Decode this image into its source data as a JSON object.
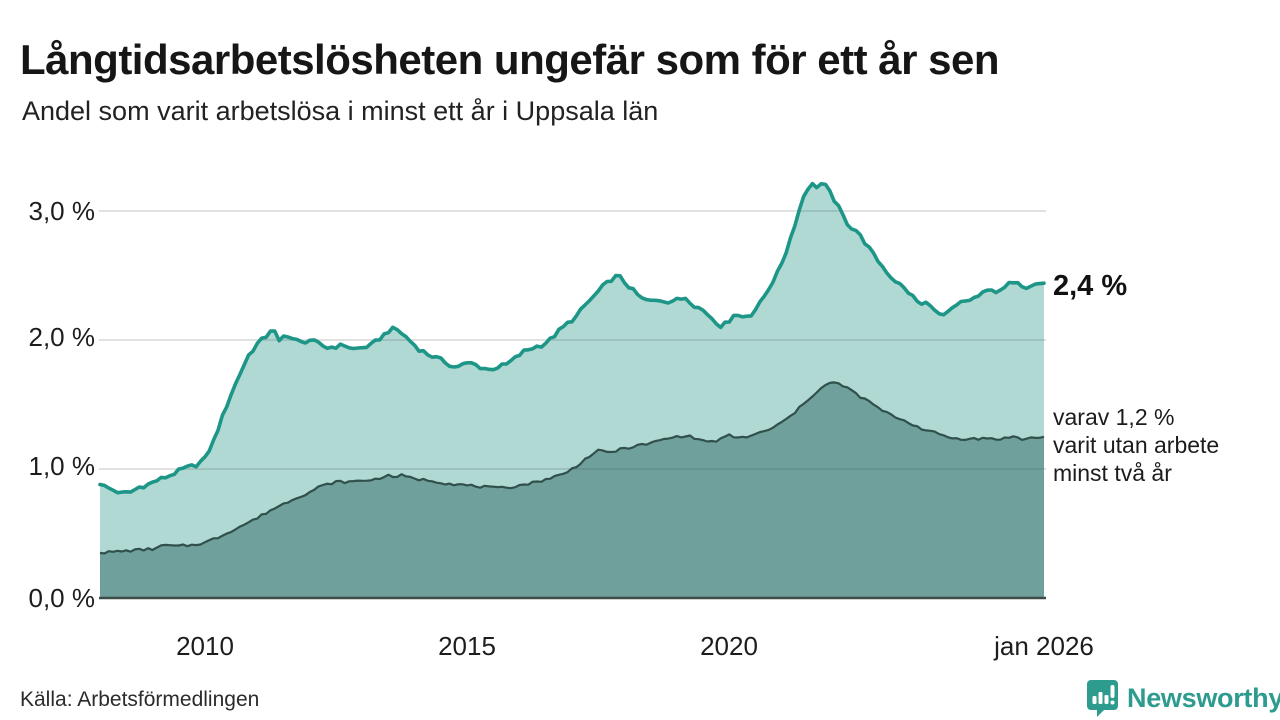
{
  "header": {
    "title": "Långtidsarbetslösheten ungefär som för ett år sen",
    "subtitle": "Andel som varit arbetslösa i minst ett år i Uppsala län"
  },
  "chart_data": {
    "type": "area",
    "title": "Andel som varit arbetslösa i minst ett år i Uppsala län",
    "x_domain": [
      2008.0,
      2026.0
    ],
    "x_resolution": "monthly",
    "ylim": [
      0,
      3.4
    ],
    "grid": "horizontal",
    "legend_position": "right-annotations",
    "yticks": [
      {
        "value": 0,
        "label": "0,0 %"
      },
      {
        "value": 1,
        "label": "1,0 %"
      },
      {
        "value": 2,
        "label": "2,0 %"
      },
      {
        "value": 3,
        "label": "3,0 %"
      }
    ],
    "xticks": [
      {
        "value": 2010,
        "label": "2010"
      },
      {
        "value": 2015,
        "label": "2015"
      },
      {
        "value": 2020,
        "label": "2020"
      },
      {
        "value": 2026,
        "label": "jan 2026"
      }
    ],
    "series": [
      {
        "name": "Andel arbetslösa minst ett år",
        "end_value": 2.4,
        "end_label": "2,4 %",
        "line_color": "#1d9688",
        "fill_color": "#b0d9d3",
        "points": [
          [
            2008.0,
            0.88
          ],
          [
            2008.17,
            0.85
          ],
          [
            2008.42,
            0.81
          ],
          [
            2008.58,
            0.82
          ],
          [
            2008.75,
            0.86
          ],
          [
            2008.92,
            0.88
          ],
          [
            2009.08,
            0.91
          ],
          [
            2009.33,
            0.95
          ],
          [
            2009.58,
            1.0
          ],
          [
            2009.83,
            1.03
          ],
          [
            2010.0,
            1.08
          ],
          [
            2010.17,
            1.22
          ],
          [
            2010.33,
            1.4
          ],
          [
            2010.5,
            1.58
          ],
          [
            2010.67,
            1.74
          ],
          [
            2010.83,
            1.88
          ],
          [
            2011.0,
            1.97
          ],
          [
            2011.17,
            2.03
          ],
          [
            2011.29,
            2.1
          ],
          [
            2011.42,
            1.98
          ],
          [
            2011.54,
            2.05
          ],
          [
            2011.67,
            2.01
          ],
          [
            2011.83,
            1.98
          ],
          [
            2012.0,
            2.0
          ],
          [
            2012.17,
            1.97
          ],
          [
            2012.33,
            1.94
          ],
          [
            2012.5,
            1.95
          ],
          [
            2012.67,
            1.96
          ],
          [
            2012.83,
            1.93
          ],
          [
            2013.0,
            1.94
          ],
          [
            2013.17,
            1.96
          ],
          [
            2013.33,
            2.01
          ],
          [
            2013.5,
            2.07
          ],
          [
            2013.63,
            2.09
          ],
          [
            2013.79,
            2.04
          ],
          [
            2013.92,
            1.99
          ],
          [
            2014.08,
            1.93
          ],
          [
            2014.25,
            1.89
          ],
          [
            2014.42,
            1.86
          ],
          [
            2014.58,
            1.83
          ],
          [
            2014.75,
            1.79
          ],
          [
            2014.92,
            1.81
          ],
          [
            2015.08,
            1.82
          ],
          [
            2015.25,
            1.79
          ],
          [
            2015.42,
            1.77
          ],
          [
            2015.58,
            1.79
          ],
          [
            2015.75,
            1.81
          ],
          [
            2015.92,
            1.86
          ],
          [
            2016.08,
            1.91
          ],
          [
            2016.25,
            1.94
          ],
          [
            2016.42,
            1.96
          ],
          [
            2016.58,
            2.0
          ],
          [
            2016.75,
            2.07
          ],
          [
            2016.92,
            2.13
          ],
          [
            2017.08,
            2.18
          ],
          [
            2017.25,
            2.27
          ],
          [
            2017.42,
            2.34
          ],
          [
            2017.58,
            2.41
          ],
          [
            2017.75,
            2.47
          ],
          [
            2017.88,
            2.5
          ],
          [
            2018.0,
            2.45
          ],
          [
            2018.17,
            2.38
          ],
          [
            2018.33,
            2.32
          ],
          [
            2018.5,
            2.3
          ],
          [
            2018.67,
            2.31
          ],
          [
            2018.83,
            2.3
          ],
          [
            2019.0,
            2.31
          ],
          [
            2019.17,
            2.33
          ],
          [
            2019.33,
            2.27
          ],
          [
            2019.5,
            2.23
          ],
          [
            2019.67,
            2.17
          ],
          [
            2019.83,
            2.11
          ],
          [
            2019.96,
            2.13
          ],
          [
            2020.08,
            2.2
          ],
          [
            2020.25,
            2.18
          ],
          [
            2020.42,
            2.2
          ],
          [
            2020.58,
            2.28
          ],
          [
            2020.75,
            2.4
          ],
          [
            2020.92,
            2.52
          ],
          [
            2021.08,
            2.68
          ],
          [
            2021.25,
            2.9
          ],
          [
            2021.42,
            3.12
          ],
          [
            2021.54,
            3.21
          ],
          [
            2021.67,
            3.19
          ],
          [
            2021.79,
            3.22
          ],
          [
            2021.92,
            3.14
          ],
          [
            2022.04,
            3.06
          ],
          [
            2022.17,
            2.96
          ],
          [
            2022.29,
            2.88
          ],
          [
            2022.42,
            2.85
          ],
          [
            2022.58,
            2.76
          ],
          [
            2022.75,
            2.66
          ],
          [
            2022.92,
            2.57
          ],
          [
            2023.08,
            2.49
          ],
          [
            2023.25,
            2.43
          ],
          [
            2023.42,
            2.37
          ],
          [
            2023.58,
            2.3
          ],
          [
            2023.71,
            2.26
          ],
          [
            2023.79,
            2.31
          ],
          [
            2023.92,
            2.22
          ],
          [
            2024.08,
            2.18
          ],
          [
            2024.25,
            2.24
          ],
          [
            2024.42,
            2.29
          ],
          [
            2024.58,
            2.31
          ],
          [
            2024.75,
            2.34
          ],
          [
            2024.92,
            2.38
          ],
          [
            2025.0,
            2.4
          ],
          [
            2025.13,
            2.36
          ],
          [
            2025.29,
            2.42
          ],
          [
            2025.46,
            2.47
          ],
          [
            2025.63,
            2.41
          ],
          [
            2025.79,
            2.43
          ],
          [
            2026.0,
            2.44
          ]
        ]
      },
      {
        "name": "varav utan arbete minst två år",
        "end_value": 1.2,
        "end_label": "varav 1,2 %\nvarit utan arbete\nminst två år",
        "line_color": "#31504c",
        "fill_color": "#6fa09b",
        "points": [
          [
            2008.0,
            0.35
          ],
          [
            2008.33,
            0.36
          ],
          [
            2008.67,
            0.37
          ],
          [
            2009.0,
            0.38
          ],
          [
            2009.25,
            0.41
          ],
          [
            2009.42,
            0.4
          ],
          [
            2009.75,
            0.41
          ],
          [
            2010.0,
            0.43
          ],
          [
            2010.25,
            0.47
          ],
          [
            2010.5,
            0.52
          ],
          [
            2010.75,
            0.57
          ],
          [
            2011.0,
            0.62
          ],
          [
            2011.25,
            0.68
          ],
          [
            2011.5,
            0.73
          ],
          [
            2011.75,
            0.78
          ],
          [
            2012.0,
            0.82
          ],
          [
            2012.17,
            0.86
          ],
          [
            2012.33,
            0.88
          ],
          [
            2012.5,
            0.9
          ],
          [
            2012.75,
            0.9
          ],
          [
            2013.0,
            0.91
          ],
          [
            2013.25,
            0.92
          ],
          [
            2013.46,
            0.95
          ],
          [
            2013.58,
            0.94
          ],
          [
            2013.75,
            0.95
          ],
          [
            2013.92,
            0.93
          ],
          [
            2014.08,
            0.92
          ],
          [
            2014.33,
            0.91
          ],
          [
            2014.58,
            0.89
          ],
          [
            2014.83,
            0.88
          ],
          [
            2015.08,
            0.87
          ],
          [
            2015.33,
            0.86
          ],
          [
            2015.58,
            0.85
          ],
          [
            2015.83,
            0.86
          ],
          [
            2016.08,
            0.88
          ],
          [
            2016.33,
            0.9
          ],
          [
            2016.58,
            0.93
          ],
          [
            2016.83,
            0.96
          ],
          [
            2017.0,
            1.0
          ],
          [
            2017.17,
            1.05
          ],
          [
            2017.33,
            1.1
          ],
          [
            2017.5,
            1.14
          ],
          [
            2017.67,
            1.13
          ],
          [
            2017.83,
            1.14
          ],
          [
            2018.0,
            1.16
          ],
          [
            2018.25,
            1.18
          ],
          [
            2018.5,
            1.2
          ],
          [
            2018.75,
            1.23
          ],
          [
            2019.0,
            1.25
          ],
          [
            2019.17,
            1.26
          ],
          [
            2019.33,
            1.24
          ],
          [
            2019.5,
            1.22
          ],
          [
            2019.67,
            1.21
          ],
          [
            2019.83,
            1.23
          ],
          [
            2020.0,
            1.26
          ],
          [
            2020.17,
            1.24
          ],
          [
            2020.33,
            1.25
          ],
          [
            2020.5,
            1.27
          ],
          [
            2020.67,
            1.29
          ],
          [
            2020.83,
            1.32
          ],
          [
            2021.0,
            1.36
          ],
          [
            2021.17,
            1.41
          ],
          [
            2021.33,
            1.47
          ],
          [
            2021.5,
            1.54
          ],
          [
            2021.67,
            1.6
          ],
          [
            2021.83,
            1.65
          ],
          [
            2021.96,
            1.67
          ],
          [
            2022.08,
            1.66
          ],
          [
            2022.25,
            1.63
          ],
          [
            2022.42,
            1.58
          ],
          [
            2022.58,
            1.54
          ],
          [
            2022.75,
            1.5
          ],
          [
            2022.92,
            1.45
          ],
          [
            2023.08,
            1.42
          ],
          [
            2023.25,
            1.39
          ],
          [
            2023.42,
            1.36
          ],
          [
            2023.58,
            1.33
          ],
          [
            2023.75,
            1.3
          ],
          [
            2023.92,
            1.28
          ],
          [
            2024.08,
            1.26
          ],
          [
            2024.25,
            1.24
          ],
          [
            2024.42,
            1.23
          ],
          [
            2024.58,
            1.24
          ],
          [
            2024.75,
            1.23
          ],
          [
            2024.92,
            1.24
          ],
          [
            2025.08,
            1.23
          ],
          [
            2025.25,
            1.24
          ],
          [
            2025.42,
            1.25
          ],
          [
            2025.58,
            1.23
          ],
          [
            2025.75,
            1.24
          ],
          [
            2026.0,
            1.25
          ]
        ]
      }
    ],
    "colors": {
      "grid": "#dedede",
      "baseline": "#3f4b49",
      "text": "#1a1a1a",
      "brand_teal": "#2d9c8e"
    }
  },
  "footer": {
    "source": "Källa: Arbetsförmedlingen",
    "brand": "Newsworthy"
  }
}
